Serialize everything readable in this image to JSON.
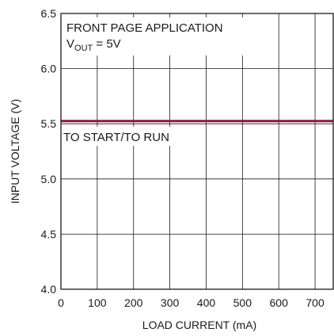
{
  "chart_data": {
    "type": "line",
    "xlabel": "LOAD CURRENT (mA)",
    "ylabel": "INPUT VOLTAGE (V)",
    "xlim": [
      0,
      750
    ],
    "ylim": [
      4.0,
      6.5
    ],
    "x_ticks": [
      "0",
      "100",
      "200",
      "300",
      "400",
      "500",
      "600",
      "700"
    ],
    "y_ticks": [
      "4.0",
      "4.5",
      "5.0",
      "5.5",
      "6.0",
      "6.5"
    ],
    "grid": true,
    "annotations": {
      "app_title": "FRONT PAGE APPLICATION",
      "vout_main": "V",
      "vout_sub": "OUT",
      "vout_value": " = 5V",
      "curve_label": "TO START/TO RUN"
    },
    "series": [
      {
        "color": "#8b1a3a",
        "x": [
          0,
          750
        ],
        "y": [
          5.525,
          5.525
        ]
      }
    ]
  }
}
